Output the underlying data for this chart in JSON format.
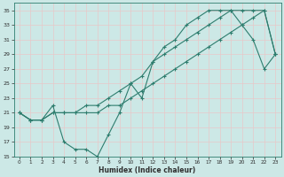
{
  "xlabel": "Humidex (Indice chaleur)",
  "background_color": "#cce8e6",
  "grid_color": "#b0d4d0",
  "line_color": "#2e7d6e",
  "xlim": [
    -0.5,
    23.5
  ],
  "ylim": [
    15,
    36
  ],
  "xticks": [
    0,
    1,
    2,
    3,
    4,
    5,
    6,
    7,
    8,
    9,
    10,
    11,
    12,
    13,
    14,
    15,
    16,
    17,
    18,
    19,
    20,
    21,
    22,
    23
  ],
  "yticks": [
    15,
    17,
    19,
    21,
    23,
    25,
    27,
    29,
    31,
    33,
    35
  ],
  "line1_x": [
    0,
    1,
    2,
    3,
    4,
    5,
    6,
    7,
    8,
    9,
    10,
    11,
    12,
    13,
    14,
    15,
    16,
    17,
    18,
    19,
    20,
    21,
    22,
    23
  ],
  "line1_y": [
    21,
    20,
    20,
    21,
    21,
    21,
    21,
    21,
    22,
    22,
    23,
    24,
    25,
    26,
    27,
    28,
    29,
    30,
    31,
    32,
    33,
    34,
    35,
    29
  ],
  "line2_x": [
    0,
    1,
    2,
    3,
    4,
    5,
    6,
    7,
    8,
    9,
    10,
    11,
    12,
    13,
    14,
    15,
    16,
    17,
    18,
    19,
    20,
    21,
    22,
    23
  ],
  "line2_y": [
    21,
    20,
    20,
    22,
    17,
    16,
    16,
    15,
    18,
    21,
    25,
    23,
    28,
    30,
    31,
    33,
    34,
    35,
    35,
    35,
    33,
    31,
    27,
    29
  ],
  "line3_x": [
    0,
    1,
    2,
    3,
    4,
    5,
    6,
    7,
    8,
    9,
    10,
    11,
    12,
    13,
    14,
    15,
    16,
    17,
    18,
    19,
    20,
    21,
    22,
    23
  ],
  "line3_y": [
    21,
    20,
    20,
    21,
    21,
    21,
    22,
    22,
    23,
    24,
    25,
    26,
    28,
    29,
    30,
    31,
    32,
    33,
    34,
    35,
    35,
    35,
    35,
    29
  ]
}
